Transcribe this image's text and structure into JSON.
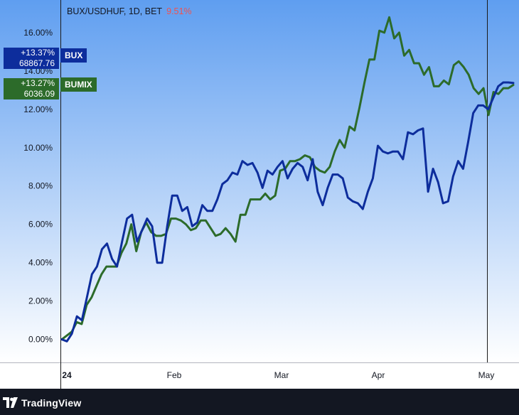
{
  "header": {
    "symbol": "BUX/USDHUF, 1D, BET",
    "change": "9.51%",
    "change_color": "#ef5350"
  },
  "footer": {
    "brand": "TradingView",
    "logo_icon": "tradingview-logo-icon"
  },
  "chart_data": {
    "type": "line",
    "y_tick_labels": [
      "0.00%",
      "2.00%",
      "4.00%",
      "6.00%",
      "8.00%",
      "10.00%",
      "12.00%",
      "14.00%",
      "16.00%"
    ],
    "x_tick_labels": [
      "24",
      "Feb",
      "Mar",
      "Apr",
      "May"
    ],
    "ylim": [
      -1.2,
      17.7
    ],
    "grid": false,
    "background_gradient": [
      "#5f9ef0",
      "#ffffff"
    ],
    "series": [
      {
        "name": "BUX",
        "color": "#0d2d9c",
        "last_change": "+13.37%",
        "last_price": "68867.76",
        "values": [
          0.0,
          -0.1,
          0.3,
          1.2,
          1.0,
          2.2,
          3.4,
          3.8,
          4.7,
          5.0,
          4.2,
          3.8,
          5.1,
          6.3,
          6.5,
          5.1,
          5.7,
          6.3,
          5.9,
          4.0,
          4.0,
          5.9,
          7.5,
          7.5,
          6.7,
          6.9,
          5.9,
          6.1,
          7.0,
          6.7,
          6.7,
          7.3,
          8.1,
          8.3,
          8.7,
          8.6,
          9.3,
          9.1,
          9.2,
          8.7,
          7.9,
          8.8,
          8.6,
          9.0,
          9.3,
          8.4,
          8.9,
          9.2,
          9.0,
          8.3,
          9.4,
          7.7,
          7.0,
          7.9,
          8.6,
          8.6,
          8.4,
          7.4,
          7.2,
          7.1,
          6.8,
          7.7,
          8.4,
          10.1,
          9.8,
          9.7,
          9.8,
          9.8,
          9.4,
          10.8,
          10.7,
          10.9,
          11.0,
          7.7,
          8.9,
          8.2,
          7.1,
          7.2,
          8.5,
          9.3,
          8.9,
          10.3,
          11.8,
          12.2,
          12.2,
          12.0,
          12.6,
          13.2,
          13.4,
          13.4,
          13.37
        ]
      },
      {
        "name": "BUMIX",
        "color": "#2c6b2a",
        "last_change": "+13.27%",
        "last_price": "6036.09",
        "values": [
          0.0,
          0.2,
          0.4,
          0.9,
          0.8,
          1.8,
          2.2,
          2.8,
          3.4,
          3.8,
          3.8,
          3.8,
          4.5,
          5.0,
          6.0,
          4.6,
          5.6,
          6.1,
          5.6,
          5.4,
          5.4,
          5.5,
          6.3,
          6.3,
          6.2,
          6.0,
          5.7,
          5.8,
          6.2,
          6.2,
          5.8,
          5.4,
          5.5,
          5.8,
          5.5,
          5.1,
          6.5,
          6.5,
          7.3,
          7.3,
          7.3,
          7.6,
          7.3,
          7.5,
          8.8,
          8.9,
          9.3,
          9.3,
          9.4,
          9.6,
          9.5,
          9.0,
          8.8,
          8.7,
          9.0,
          9.8,
          10.4,
          10.0,
          11.1,
          10.9,
          12.1,
          13.4,
          14.6,
          14.6,
          16.1,
          16.0,
          16.8,
          15.7,
          16.0,
          14.8,
          15.1,
          14.4,
          14.4,
          13.8,
          14.2,
          13.2,
          13.2,
          13.5,
          13.3,
          14.3,
          14.5,
          14.2,
          13.8,
          13.1,
          12.8,
          13.1,
          11.7,
          12.9,
          12.8,
          13.1,
          13.1,
          13.27
        ]
      }
    ]
  }
}
